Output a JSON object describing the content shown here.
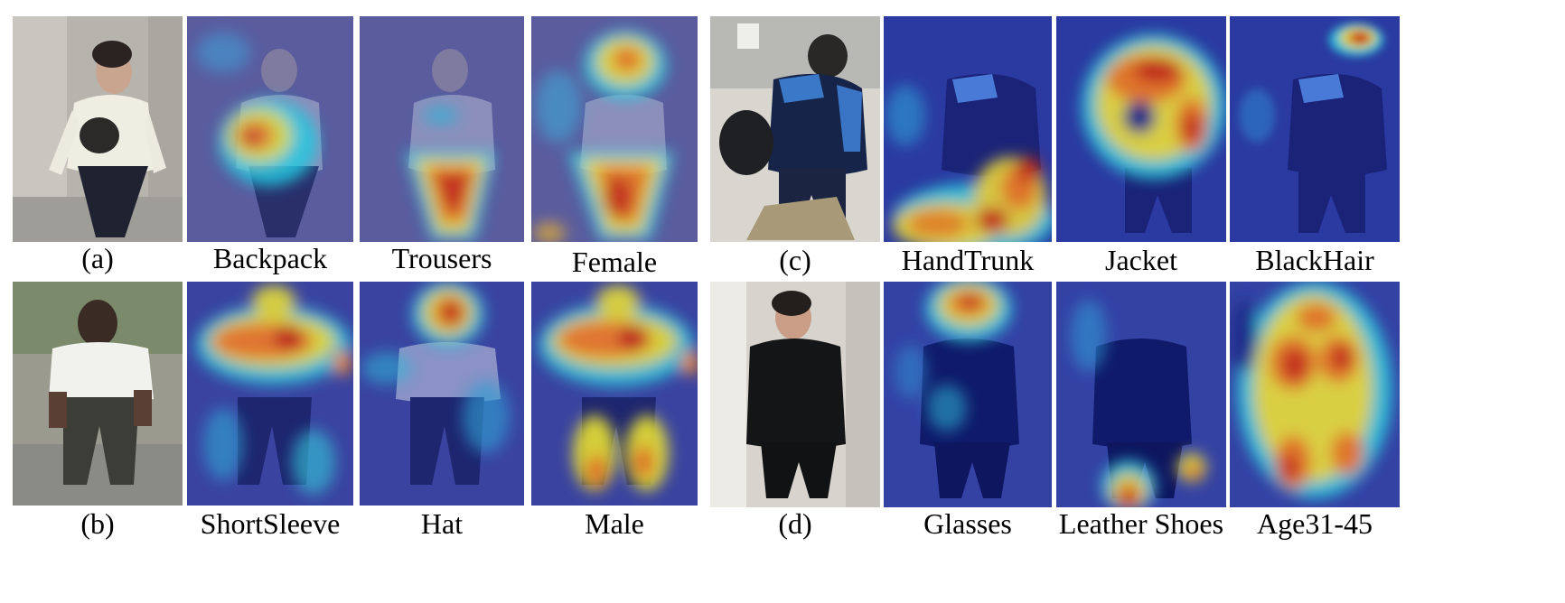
{
  "figure": {
    "panels": [
      {
        "label": "(a)",
        "photo": "woman-cream-sweater-backpack-photo",
        "attributes": [
          "Backpack",
          "Trousers",
          "Female"
        ]
      },
      {
        "label": "(b)",
        "photo": "man-white-shirt-cap-photo",
        "attributes": [
          "ShortSleeve",
          "Hat",
          "Male"
        ]
      },
      {
        "label": "(c)",
        "photo": "person-blue-jacket-handtrunk-photo",
        "attributes": [
          "HandTrunk",
          "Jacket",
          "BlackHair"
        ]
      },
      {
        "label": "(d)",
        "photo": "woman-black-coat-glasses-photo",
        "attributes": [
          "Glasses",
          "Leather Shoes",
          "Age31-45"
        ]
      }
    ]
  }
}
